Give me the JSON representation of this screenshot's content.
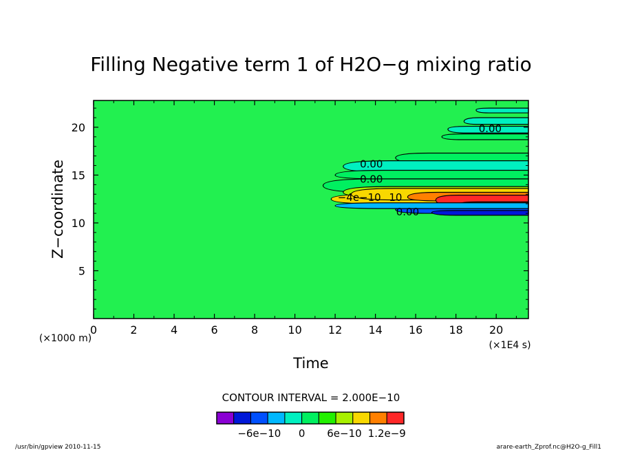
{
  "chart_data": {
    "type": "contour",
    "title": "Filling Negative term 1 of H2O−g mixing ratio",
    "xlabel": "Time",
    "ylabel": "Z−coordinate",
    "x_unit": "(×1E4 s)",
    "y_unit": "(×1000 m)",
    "xlim": [
      0,
      21.6
    ],
    "ylim": [
      0,
      22.8
    ],
    "x_ticks": [
      "0",
      "2",
      "4",
      "6",
      "8",
      "10",
      "12",
      "14",
      "16",
      "18",
      "20"
    ],
    "y_ticks": [
      "5",
      "10",
      "15",
      "20"
    ],
    "contour_interval_text": "CONTOUR INTERVAL = 2.000E−10",
    "contour_labels": [
      "0.00",
      "0.00",
      "0.00",
      "0.00",
      "10",
      "−4e−10"
    ],
    "background_color": "#22f050",
    "colorbar": {
      "colors": [
        "#8a00d4",
        "#0018d8",
        "#0050ff",
        "#00b8ff",
        "#00f0c0",
        "#00f060",
        "#22f000",
        "#a8f000",
        "#f8d800",
        "#ff8000",
        "#ff2828"
      ],
      "tick_labels": [
        "−6e−10",
        "0",
        "6e−10",
        "1.2e−9"
      ]
    }
  },
  "footer": {
    "left": "/usr/bin/gpview   2010-11-15",
    "right": "arare-earth_Zprof.nc@H2O-g_Fill1"
  }
}
